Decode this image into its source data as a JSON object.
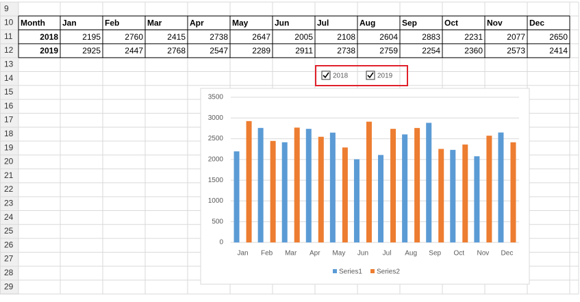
{
  "sheet": {
    "row_numbers": [
      9,
      10,
      11,
      12,
      13,
      14,
      15,
      16,
      17,
      18,
      19,
      20,
      21,
      22,
      23,
      24,
      25,
      26,
      27,
      28,
      29
    ],
    "table": {
      "header": [
        "Month",
        "Jan",
        "Feb",
        "Mar",
        "Apr",
        "May",
        "Jun",
        "Jul",
        "Aug",
        "Sep",
        "Oct",
        "Nov",
        "Dec"
      ],
      "rows": [
        [
          "2018",
          2195,
          2760,
          2415,
          2738,
          2647,
          2005,
          2108,
          2604,
          2883,
          2231,
          2077,
          2650
        ],
        [
          "2019",
          2925,
          2447,
          2768,
          2547,
          2289,
          2911,
          2738,
          2759,
          2254,
          2360,
          2573,
          2414
        ]
      ]
    },
    "checkboxes": [
      {
        "label": "2018",
        "checked": true
      },
      {
        "label": "2019",
        "checked": true
      }
    ]
  },
  "chart_data": {
    "type": "bar",
    "categories": [
      "Jan",
      "Feb",
      "Mar",
      "Apr",
      "May",
      "Jun",
      "Jul",
      "Aug",
      "Sep",
      "Oct",
      "Nov",
      "Dec"
    ],
    "series": [
      {
        "name": "Series1",
        "color": "#5b9bd5",
        "values": [
          2195,
          2760,
          2415,
          2738,
          2647,
          2005,
          2108,
          2604,
          2883,
          2231,
          2077,
          2650
        ]
      },
      {
        "name": "Series2",
        "color": "#ed7d31",
        "values": [
          2925,
          2447,
          2768,
          2547,
          2289,
          2911,
          2738,
          2759,
          2254,
          2360,
          2573,
          2414
        ]
      }
    ],
    "ylim": [
      0,
      3500
    ],
    "yticks": [
      0,
      500,
      1000,
      1500,
      2000,
      2500,
      3000,
      3500
    ],
    "grid": true,
    "legend": "bottom"
  }
}
